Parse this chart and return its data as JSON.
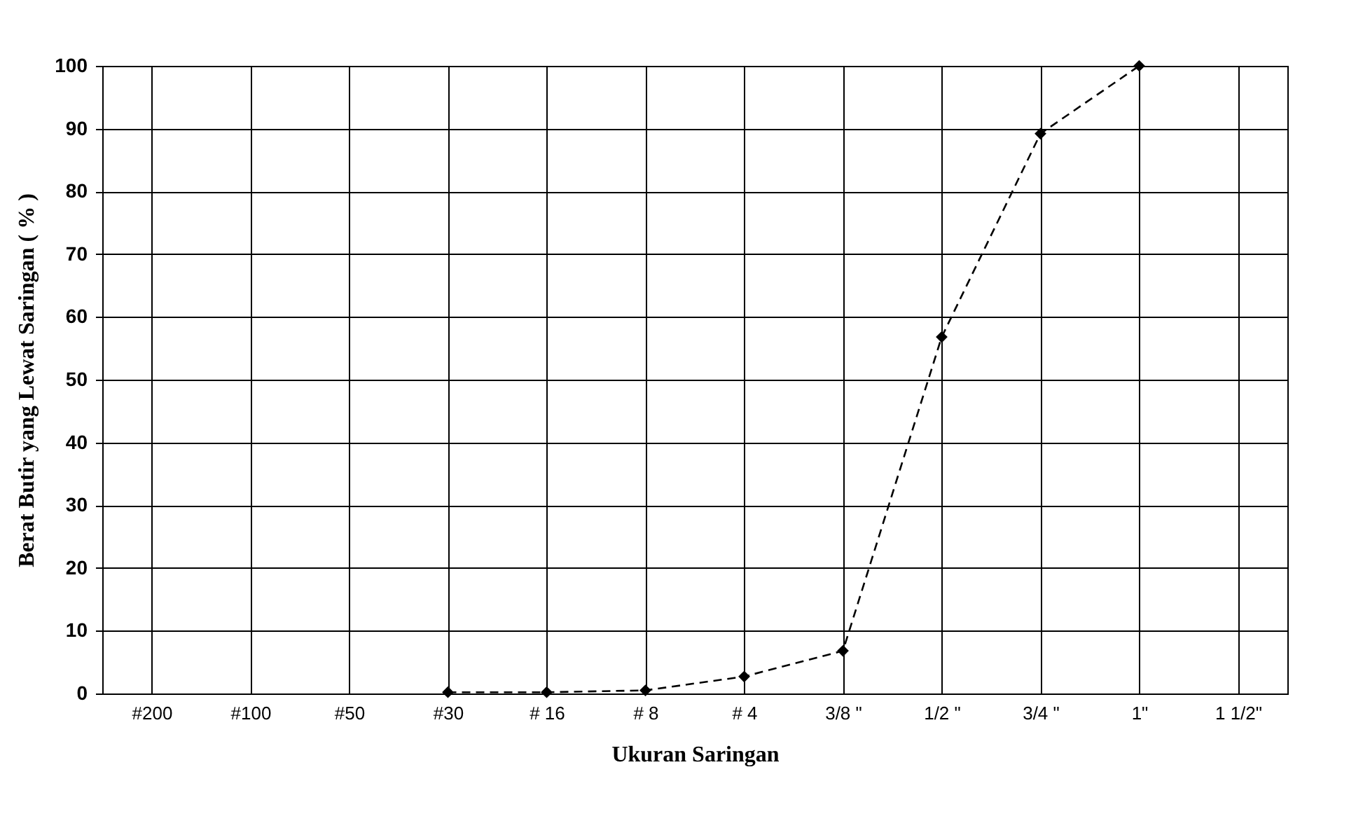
{
  "chart_data": {
    "type": "line",
    "xlabel": "Ukuran Saringan",
    "ylabel": "Berat Butir yang Lewat Saringan ( % )",
    "categories": [
      "#200",
      "#100",
      "#50",
      "#30",
      "# 16",
      "# 8",
      "# 4",
      "3/8 \"",
      "1/2 \"",
      "3/4 \"",
      "1\"",
      "1 1/2\""
    ],
    "series": [
      {
        "color": "#000000",
        "values": [
          null,
          null,
          null,
          0.2,
          0.2,
          0.5,
          2.7,
          6.8,
          56.8,
          89.2,
          100,
          null
        ]
      }
    ],
    "ylim": [
      0,
      100
    ],
    "yticks": [
      0,
      10,
      20,
      30,
      40,
      50,
      60,
      70,
      80,
      90,
      100
    ],
    "grid": true,
    "marker": "diamond",
    "line_style": "dashed"
  }
}
